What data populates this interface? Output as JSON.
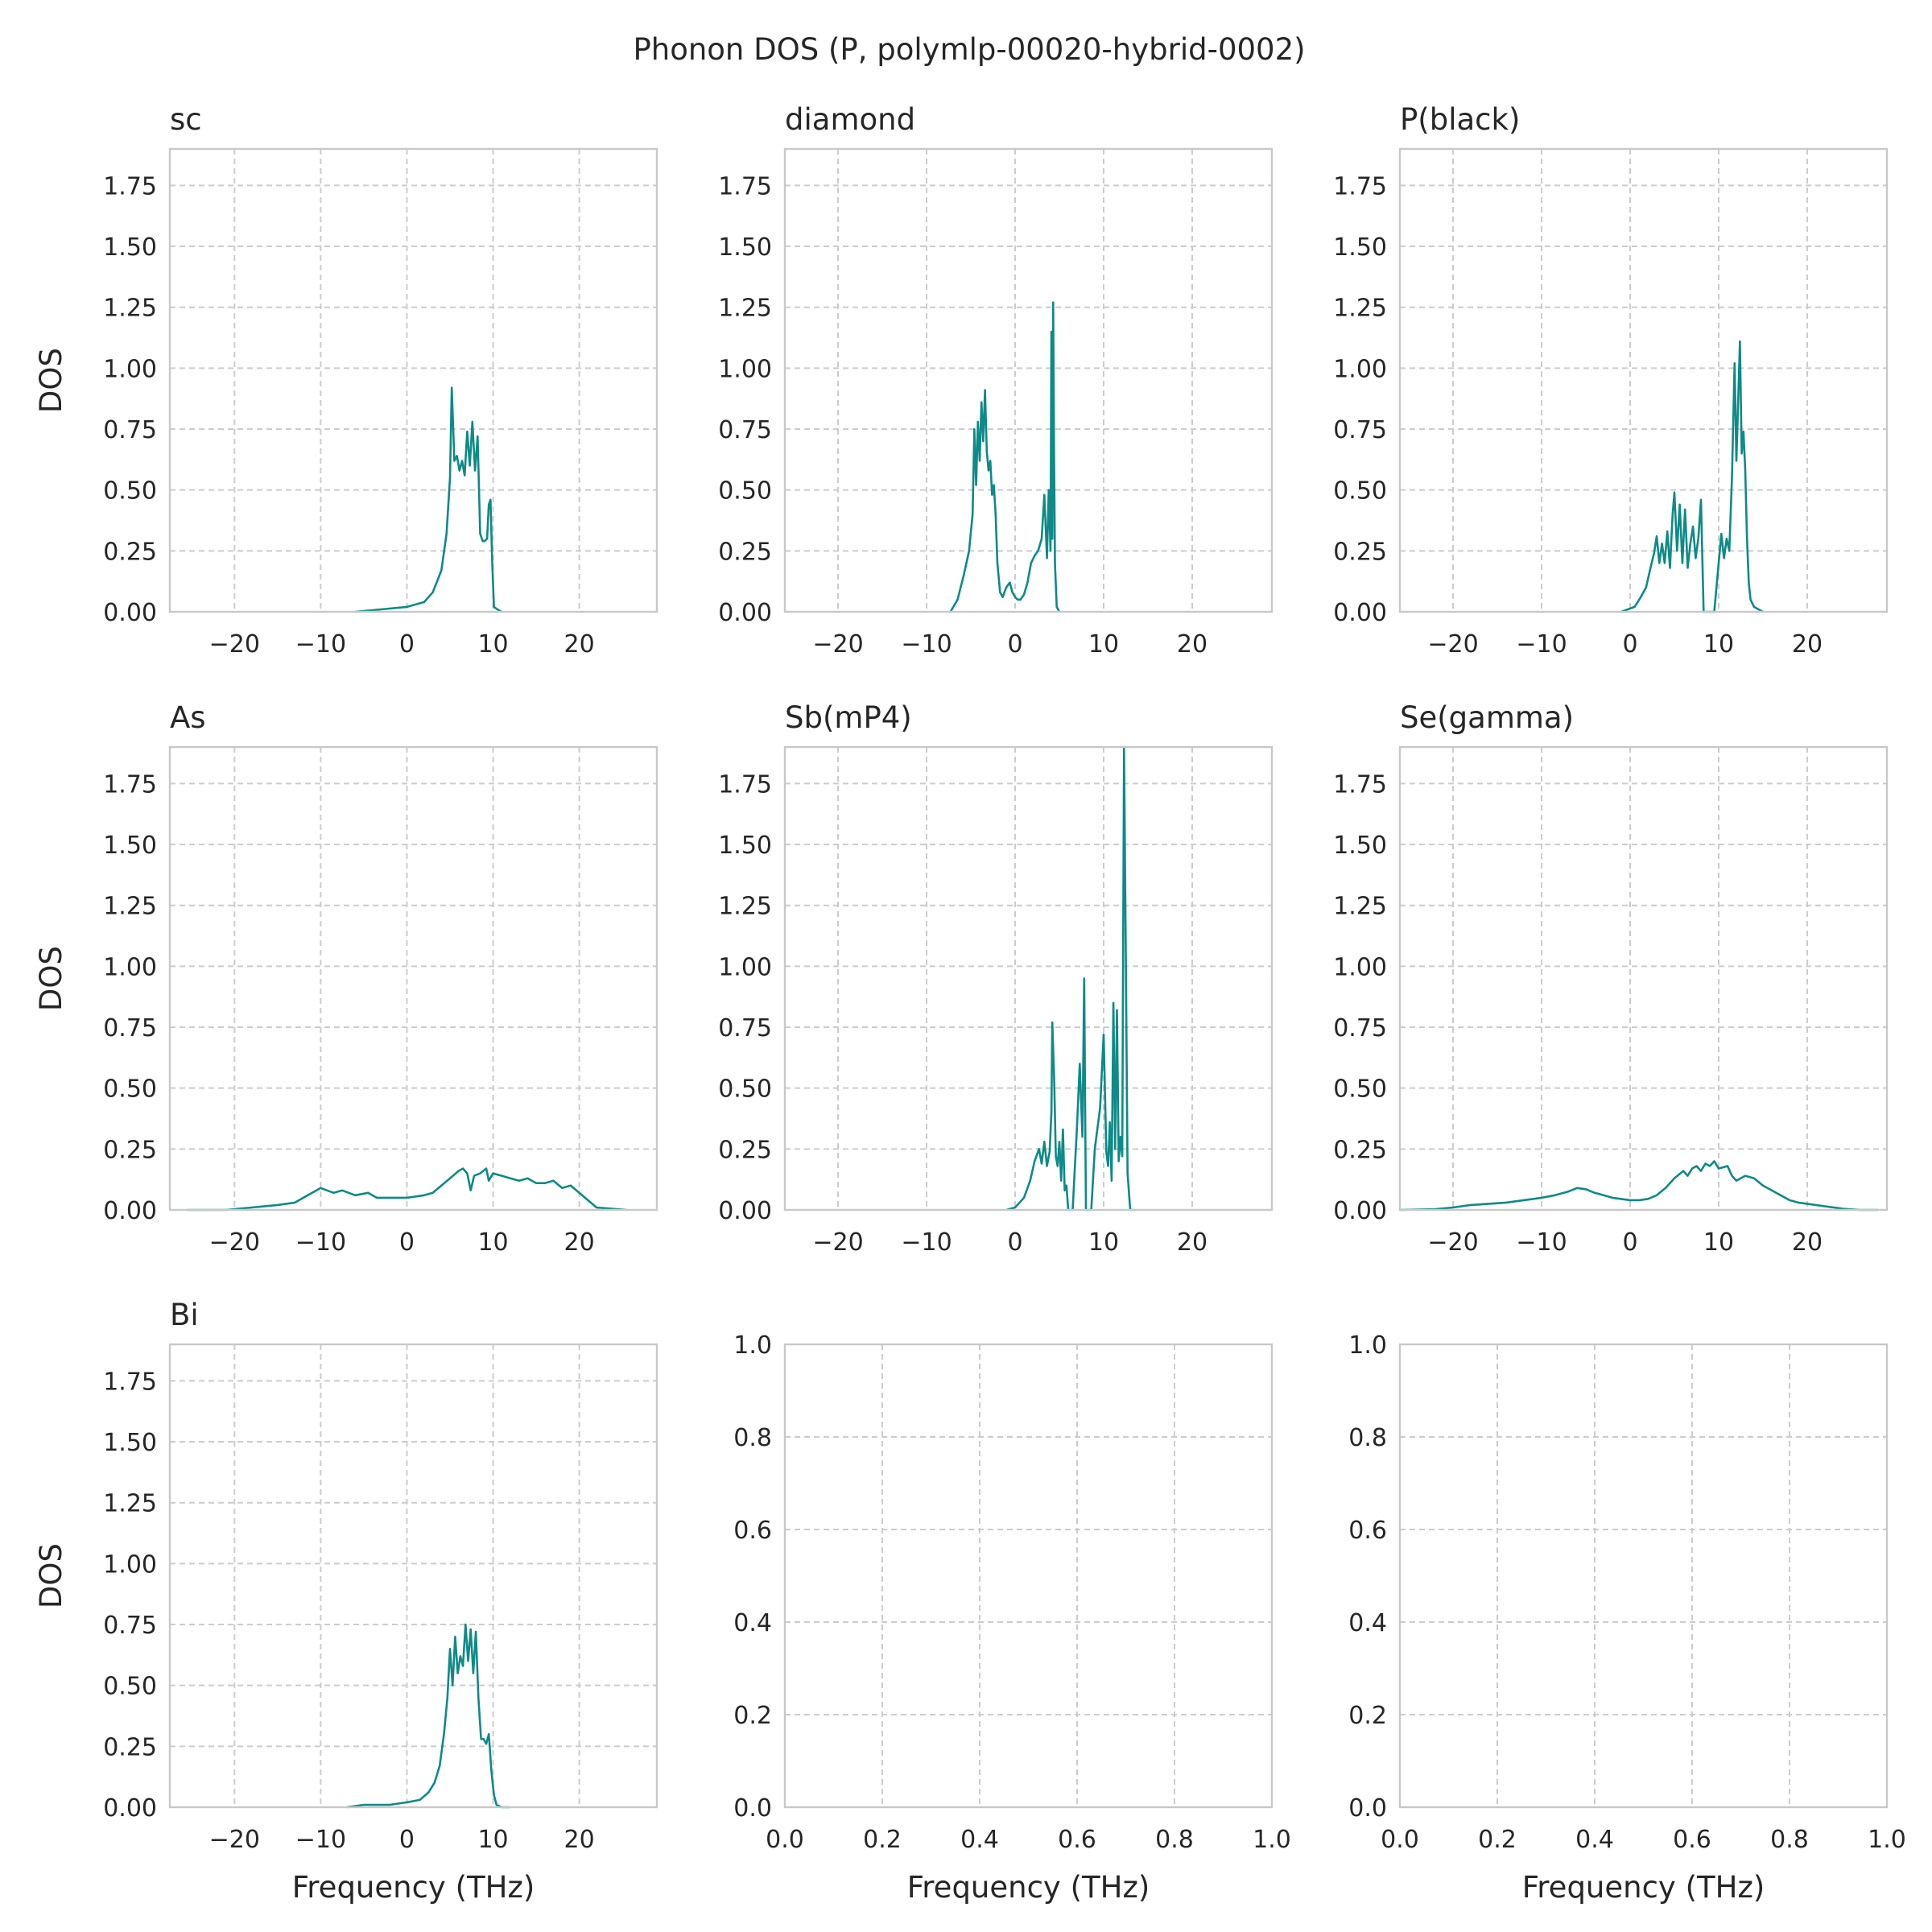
{
  "figure": {
    "title": "Phonon DOS (P, polymlp-00020-hybrid-0002)",
    "line_color": "#0e8a87",
    "grid_color": "#cccccc",
    "frame_color": "#c8c8c8"
  },
  "chart_data": [
    {
      "type": "line",
      "title": "sc",
      "xlabel": "",
      "ylabel": "DOS",
      "xlim": [
        -27.5,
        29
      ],
      "ylim": [
        0,
        1.9
      ],
      "xticks": [
        -20,
        -10,
        0,
        10,
        20
      ],
      "xtick_labels": [
        "−20",
        "−10",
        "0",
        "10",
        "20"
      ],
      "yticks": [
        0,
        0.25,
        0.5,
        0.75,
        1.0,
        1.25,
        1.5,
        1.75
      ],
      "ytick_labels": [
        "0.00",
        "0.25",
        "0.50",
        "0.75",
        "1.00",
        "1.25",
        "1.50",
        "1.75"
      ],
      "grid": true,
      "series": [
        {
          "x": [
            -6,
            -3,
            0,
            2,
            3,
            4,
            4.6,
            5,
            5.2,
            5.5,
            5.8,
            6.1,
            6.4,
            6.7,
            7,
            7.3,
            7.6,
            7.9,
            8.2,
            8.5,
            8.8,
            9,
            9.3,
            9.5,
            9.7,
            9.9,
            10.1,
            10.5,
            11
          ],
          "y": [
            0,
            0.01,
            0.02,
            0.04,
            0.08,
            0.17,
            0.32,
            0.55,
            0.92,
            0.62,
            0.64,
            0.58,
            0.62,
            0.56,
            0.74,
            0.6,
            0.78,
            0.58,
            0.72,
            0.32,
            0.29,
            0.29,
            0.3,
            0.44,
            0.46,
            0.2,
            0.02,
            0.01,
            0
          ]
        }
      ]
    },
    {
      "type": "line",
      "title": "diamond",
      "xlabel": "",
      "ylabel": "",
      "xlim": [
        -26,
        29
      ],
      "ylim": [
        0,
        1.9
      ],
      "xticks": [
        -20,
        -10,
        0,
        10,
        20
      ],
      "xtick_labels": [
        "−20",
        "−10",
        "0",
        "10",
        "20"
      ],
      "yticks": [
        0,
        0.25,
        0.5,
        0.75,
        1.0,
        1.25,
        1.5,
        1.75
      ],
      "ytick_labels": [
        "0.00",
        "0.25",
        "0.50",
        "0.75",
        "1.00",
        "1.25",
        "1.50",
        "1.75"
      ],
      "grid": true,
      "series": [
        {
          "x": [
            -7.3,
            -6.5,
            -5.8,
            -5.2,
            -4.8,
            -4.6,
            -4.4,
            -4.2,
            -4.0,
            -3.8,
            -3.6,
            -3.4,
            -3.2,
            -3.0,
            -2.8,
            -2.6,
            -2.4,
            -2.2,
            -2.0,
            -1.7,
            -1.4,
            -1.0,
            -0.6,
            -0.3,
            0,
            0.3,
            0.6,
            1.0,
            1.4,
            1.8,
            2.2,
            2.6,
            3.0,
            3.3,
            3.6,
            3.8,
            4.0,
            4.1,
            4.2,
            4.3,
            4.4,
            4.5,
            4.7,
            5.0
          ],
          "y": [
            0,
            0.05,
            0.15,
            0.25,
            0.4,
            0.75,
            0.52,
            0.78,
            0.62,
            0.86,
            0.7,
            0.91,
            0.66,
            0.58,
            0.62,
            0.48,
            0.52,
            0.4,
            0.2,
            0.08,
            0.06,
            0.1,
            0.12,
            0.08,
            0.06,
            0.05,
            0.05,
            0.07,
            0.12,
            0.2,
            0.23,
            0.25,
            0.3,
            0.48,
            0.22,
            0.5,
            0.25,
            1.15,
            0.3,
            1.27,
            0.65,
            0.2,
            0.02,
            0
          ]
        }
      ]
    },
    {
      "type": "line",
      "title": "P(black)",
      "xlabel": "",
      "ylabel": "",
      "xlim": [
        -26,
        29
      ],
      "ylim": [
        0,
        1.9
      ],
      "xticks": [
        -20,
        -10,
        0,
        10,
        20
      ],
      "xtick_labels": [
        "−20",
        "−10",
        "0",
        "10",
        "20"
      ],
      "yticks": [
        0,
        0.25,
        0.5,
        0.75,
        1.0,
        1.25,
        1.5,
        1.75
      ],
      "ytick_labels": [
        "0.00",
        "0.25",
        "0.50",
        "0.75",
        "1.00",
        "1.25",
        "1.50",
        "1.75"
      ],
      "grid": true,
      "series": [
        {
          "x": [
            -1,
            0.5,
            1.2,
            1.8,
            2.3,
            2.7,
            3.0,
            3.3,
            3.6,
            3.9,
            4.2,
            4.5,
            4.8,
            5.0,
            5.3,
            5.6,
            5.9,
            6.2,
            6.5,
            6.8,
            7.1,
            7.4,
            7.7,
            8.0,
            8.3,
            9.5,
            10.0,
            10.3,
            10.6,
            10.9,
            11.2,
            11.5,
            11.8,
            12.0,
            12.2,
            12.4,
            12.6,
            12.8,
            13.0,
            13.2,
            13.4,
            13.6,
            14.0,
            14.5,
            15.0
          ],
          "y": [
            0,
            0.02,
            0.06,
            0.1,
            0.18,
            0.24,
            0.31,
            0.2,
            0.28,
            0.2,
            0.33,
            0.18,
            0.4,
            0.49,
            0.25,
            0.44,
            0.2,
            0.42,
            0.18,
            0.28,
            0.35,
            0.22,
            0.3,
            0.46,
            0,
            0,
            0.2,
            0.32,
            0.22,
            0.3,
            0.25,
            0.55,
            1.02,
            0.62,
            0.86,
            1.11,
            0.65,
            0.74,
            0.58,
            0.3,
            0.12,
            0.05,
            0.02,
            0.01,
            0
          ]
        }
      ]
    },
    {
      "type": "line",
      "title": "As",
      "xlabel": "",
      "ylabel": "DOS",
      "xlim": [
        -27.5,
        29
      ],
      "ylim": [
        0,
        1.9
      ],
      "xticks": [
        -20,
        -10,
        0,
        10,
        20
      ],
      "xtick_labels": [
        "−20",
        "−10",
        "0",
        "10",
        "20"
      ],
      "yticks": [
        0,
        0.25,
        0.5,
        0.75,
        1.0,
        1.25,
        1.5,
        1.75
      ],
      "ytick_labels": [
        "0.00",
        "0.25",
        "0.50",
        "0.75",
        "1.00",
        "1.25",
        "1.50",
        "1.75"
      ],
      "grid": true,
      "series": [
        {
          "x": [
            -25.5,
            -21,
            -18,
            -15,
            -13,
            -11.5,
            -10,
            -8.5,
            -7.5,
            -6,
            -4.5,
            -3.5,
            -2,
            0,
            2,
            3,
            4,
            5,
            6,
            6.5,
            7,
            7.4,
            7.8,
            8.5,
            9.2,
            9.5,
            10,
            11,
            12,
            13,
            14,
            15,
            16,
            17,
            18,
            19,
            20,
            21,
            22,
            25.5
          ],
          "y": [
            0,
            0,
            0.01,
            0.02,
            0.03,
            0.06,
            0.09,
            0.07,
            0.08,
            0.06,
            0.07,
            0.05,
            0.05,
            0.05,
            0.06,
            0.07,
            0.1,
            0.13,
            0.16,
            0.17,
            0.15,
            0.08,
            0.14,
            0.15,
            0.17,
            0.12,
            0.15,
            0.14,
            0.13,
            0.12,
            0.13,
            0.11,
            0.11,
            0.12,
            0.09,
            0.1,
            0.07,
            0.04,
            0.01,
            0
          ]
        }
      ]
    },
    {
      "type": "line",
      "title": "Sb(mP4)",
      "xlabel": "",
      "ylabel": "",
      "xlim": [
        -26,
        29
      ],
      "ylim": [
        0,
        1.9
      ],
      "xticks": [
        -20,
        -10,
        0,
        10,
        20
      ],
      "xtick_labels": [
        "−20",
        "−10",
        "0",
        "10",
        "20"
      ],
      "yticks": [
        0,
        0.25,
        0.5,
        0.75,
        1.0,
        1.25,
        1.5,
        1.75
      ],
      "ytick_labels": [
        "0.00",
        "0.25",
        "0.50",
        "0.75",
        "1.00",
        "1.25",
        "1.50",
        "1.75"
      ],
      "grid": true,
      "series": [
        {
          "x": [
            -1,
            0,
            1,
            1.7,
            2.2,
            2.7,
            3.0,
            3.3,
            3.6,
            3.9,
            4.1,
            4.2,
            4.4,
            4.6,
            4.8,
            5.0,
            5.2,
            5.4,
            5.6,
            5.8,
            6.0,
            6.5,
            7.0,
            7.3,
            7.6,
            7.8,
            8.0,
            8.3,
            8.6,
            9.0,
            9.6,
            10.0,
            10.3,
            10.5,
            10.7,
            10.9,
            11.1,
            11.3,
            11.5,
            11.7,
            11.9,
            12.1,
            12.3,
            12.5,
            12.7,
            13.0,
            13.5
          ],
          "y": [
            0,
            0.01,
            0.05,
            0.12,
            0.2,
            0.25,
            0.19,
            0.28,
            0.18,
            0.24,
            0.4,
            0.77,
            0.55,
            0.22,
            0.18,
            0.28,
            0.12,
            0.33,
            0.08,
            0.1,
            0,
            0,
            0.35,
            0.6,
            0.3,
            0.95,
            0,
            0,
            0,
            0.25,
            0.42,
            0.72,
            0.24,
            0.18,
            0.36,
            0.12,
            0.85,
            0.25,
            0.82,
            0.2,
            0.3,
            0.22,
            1.9,
            1.05,
            0.15,
            0,
            0
          ]
        }
      ]
    },
    {
      "type": "line",
      "title": "Se(gamma)",
      "xlabel": "",
      "ylabel": "",
      "xlim": [
        -26,
        29
      ],
      "ylim": [
        0,
        1.9
      ],
      "xticks": [
        -20,
        -10,
        0,
        10,
        20
      ],
      "xtick_labels": [
        "−20",
        "−10",
        "0",
        "10",
        "20"
      ],
      "yticks": [
        0,
        0.25,
        0.5,
        0.75,
        1.0,
        1.25,
        1.5,
        1.75
      ],
      "ytick_labels": [
        "0.00",
        "0.25",
        "0.50",
        "0.75",
        "1.00",
        "1.25",
        "1.50",
        "1.75"
      ],
      "grid": true,
      "series": [
        {
          "x": [
            -26,
            -22,
            -20,
            -18,
            -16,
            -14,
            -12,
            -10,
            -8.5,
            -7,
            -6,
            -5,
            -4,
            -3,
            -2,
            -1,
            0,
            1,
            2,
            3,
            4,
            5,
            6,
            6.5,
            7,
            7.5,
            8,
            8.5,
            9,
            9.5,
            10,
            11,
            11.5,
            12,
            13,
            14,
            15,
            16,
            17,
            18,
            19,
            20,
            22,
            24,
            26,
            28
          ],
          "y": [
            0,
            0.003,
            0.01,
            0.02,
            0.025,
            0.03,
            0.04,
            0.05,
            0.06,
            0.075,
            0.09,
            0.085,
            0.07,
            0.06,
            0.05,
            0.045,
            0.04,
            0.04,
            0.045,
            0.06,
            0.09,
            0.13,
            0.16,
            0.14,
            0.17,
            0.18,
            0.16,
            0.19,
            0.18,
            0.2,
            0.17,
            0.18,
            0.14,
            0.12,
            0.14,
            0.13,
            0.1,
            0.08,
            0.06,
            0.04,
            0.03,
            0.025,
            0.015,
            0.005,
            0,
            0
          ]
        }
      ]
    },
    {
      "type": "line",
      "title": "Bi",
      "xlabel": "Frequency (THz)",
      "ylabel": "DOS",
      "xlim": [
        -27.5,
        29
      ],
      "ylim": [
        0,
        1.9
      ],
      "xticks": [
        -20,
        -10,
        0,
        10,
        20
      ],
      "xtick_labels": [
        "−20",
        "−10",
        "0",
        "10",
        "20"
      ],
      "yticks": [
        0,
        0.25,
        0.5,
        0.75,
        1.0,
        1.25,
        1.5,
        1.75
      ],
      "ytick_labels": [
        "0.00",
        "0.25",
        "0.50",
        "0.75",
        "1.00",
        "1.25",
        "1.50",
        "1.75"
      ],
      "grid": true,
      "series": [
        {
          "x": [
            -7,
            -5,
            -2,
            0,
            1.5,
            2.5,
            3.2,
            3.8,
            4.3,
            4.7,
            5.0,
            5.3,
            5.6,
            5.9,
            6.2,
            6.5,
            6.8,
            7.1,
            7.4,
            7.7,
            8.0,
            8.3,
            8.6,
            8.9,
            9.2,
            9.5,
            9.8,
            10.1,
            10.4,
            11,
            12
          ],
          "y": [
            0,
            0.01,
            0.01,
            0.02,
            0.03,
            0.06,
            0.1,
            0.17,
            0.3,
            0.45,
            0.65,
            0.5,
            0.7,
            0.55,
            0.62,
            0.58,
            0.75,
            0.6,
            0.73,
            0.55,
            0.72,
            0.45,
            0.28,
            0.28,
            0.26,
            0.3,
            0.15,
            0.05,
            0.01,
            0,
            0
          ]
        }
      ]
    },
    {
      "type": "line",
      "title": "",
      "xlabel": "Frequency (THz)",
      "ylabel": "",
      "xlim": [
        0,
        1
      ],
      "ylim": [
        0,
        1
      ],
      "xticks": [
        0,
        0.2,
        0.4,
        0.6,
        0.8,
        1.0
      ],
      "xtick_labels": [
        "0.0",
        "0.2",
        "0.4",
        "0.6",
        "0.8",
        "1.0"
      ],
      "yticks": [
        0,
        0.2,
        0.4,
        0.6,
        0.8,
        1.0
      ],
      "ytick_labels": [
        "0.0",
        "0.2",
        "0.4",
        "0.6",
        "0.8",
        "1.0"
      ],
      "grid": true,
      "series": []
    },
    {
      "type": "line",
      "title": "",
      "xlabel": "Frequency (THz)",
      "ylabel": "",
      "xlim": [
        0,
        1
      ],
      "ylim": [
        0,
        1
      ],
      "xticks": [
        0,
        0.2,
        0.4,
        0.6,
        0.8,
        1.0
      ],
      "xtick_labels": [
        "0.0",
        "0.2",
        "0.4",
        "0.6",
        "0.8",
        "1.0"
      ],
      "yticks": [
        0,
        0.2,
        0.4,
        0.6,
        0.8,
        1.0
      ],
      "ytick_labels": [
        "0.0",
        "0.2",
        "0.4",
        "0.6",
        "0.8",
        "1.0"
      ],
      "grid": true,
      "series": []
    }
  ]
}
